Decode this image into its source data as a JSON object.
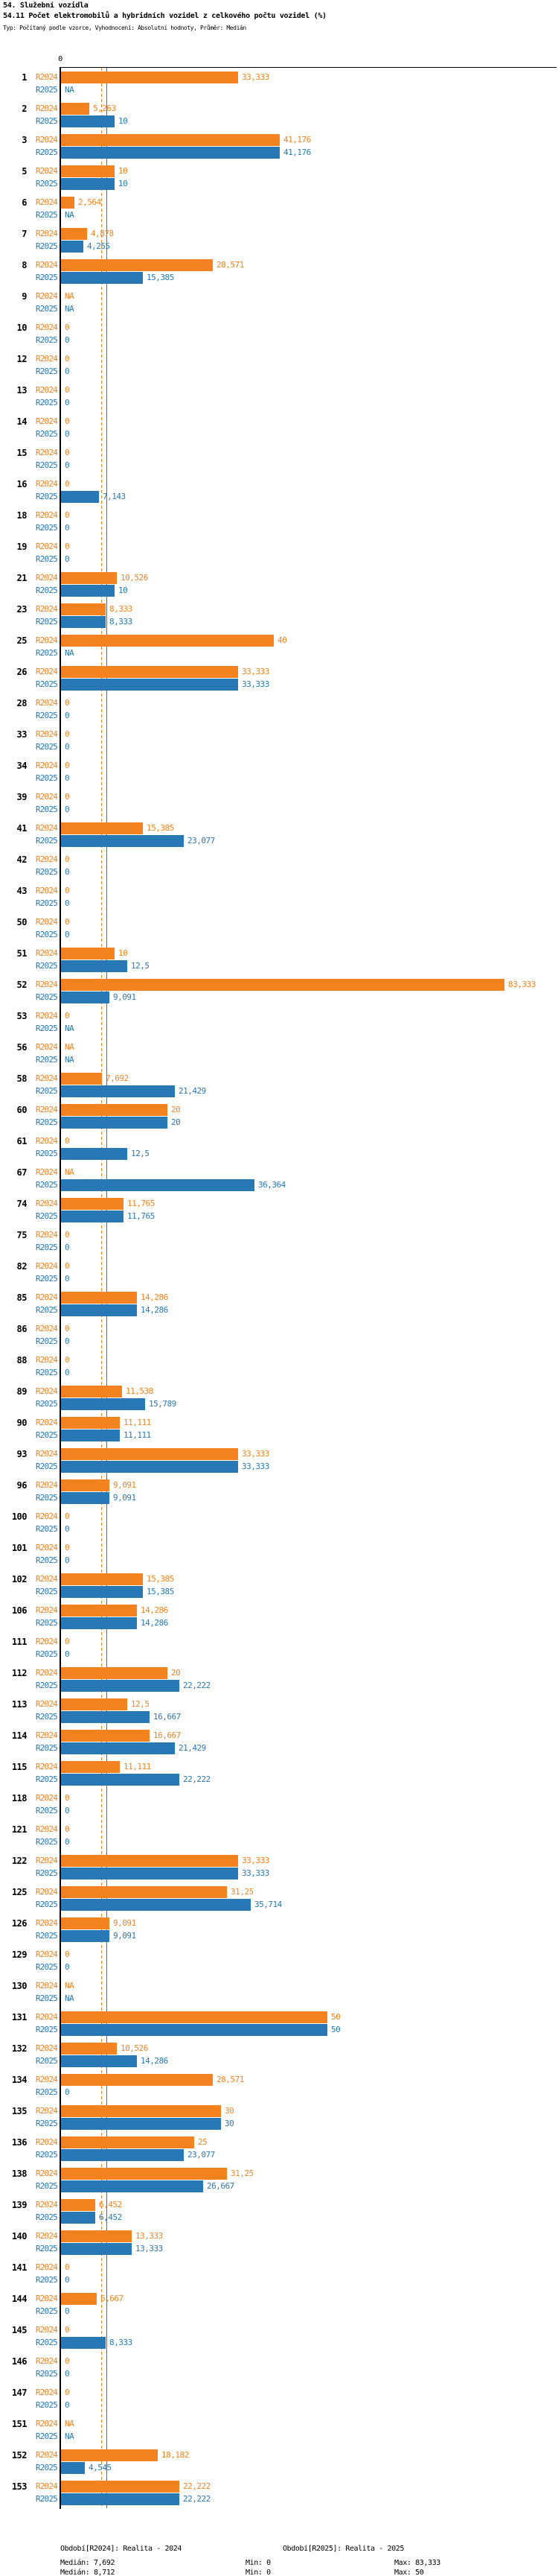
{
  "header": {
    "section_title": "54. Služební vozidla",
    "indicator_title": "54.11 Počet elektromobilů a hybridních vozidel z celkového počtu vozidel (%)",
    "meta": "Typ: Počítaný podle vzorce, Vyhodnocení: Absolutní hodnoty, Průměr: Medián"
  },
  "axis": {
    "zero_label": "0"
  },
  "colors": {
    "r2024_orange": "#F58220",
    "r2025_blue": "#2878B5",
    "axis_black": "#000000"
  },
  "na_label": "NA",
  "chart_data": {
    "type": "bar",
    "orientation": "horizontal",
    "title": "54.11 Počet elektromobilů a hybridních vozidel z celkového počtu vozidel (%)",
    "xlabel": "",
    "ylabel": "",
    "xlim": [
      0,
      93
    ],
    "grid": false,
    "legend_position": "bottom",
    "categories": [
      "1",
      "2",
      "3",
      "5",
      "6",
      "7",
      "8",
      "9",
      "10",
      "12",
      "13",
      "14",
      "15",
      "16",
      "18",
      "19",
      "21",
      "23",
      "25",
      "26",
      "28",
      "33",
      "34",
      "39",
      "41",
      "42",
      "43",
      "50",
      "51",
      "52",
      "53",
      "56",
      "58",
      "60",
      "61",
      "67",
      "74",
      "75",
      "82",
      "85",
      "86",
      "88",
      "89",
      "90",
      "93",
      "96",
      "100",
      "101",
      "102",
      "106",
      "111",
      "112",
      "113",
      "114",
      "115",
      "118",
      "121",
      "122",
      "125",
      "126",
      "129",
      "130",
      "131",
      "132",
      "134",
      "135",
      "136",
      "138",
      "139",
      "140",
      "141",
      "144",
      "145",
      "146",
      "147",
      "151",
      "152",
      "153"
    ],
    "series": [
      {
        "name": "R2024",
        "color": "#F58220",
        "median": 7.692,
        "min": 0,
        "max": 83.333,
        "values": [
          33.333,
          5.263,
          41.176,
          10,
          2.564,
          4.878,
          28.571,
          null,
          0,
          0,
          0,
          0,
          0,
          0,
          0,
          0,
          10.526,
          8.333,
          40,
          33.333,
          0,
          0,
          0,
          0,
          15.385,
          0,
          0,
          0,
          10,
          83.333,
          0,
          null,
          7.692,
          20,
          0,
          null,
          11.765,
          0,
          0,
          14.286,
          0,
          0,
          11.538,
          11.111,
          33.333,
          9.091,
          0,
          0,
          15.385,
          14.286,
          0,
          20,
          12.5,
          16.667,
          11.111,
          0,
          0,
          33.333,
          31.25,
          9.091,
          0,
          null,
          50,
          10.526,
          28.571,
          30,
          25,
          31.25,
          6.452,
          13.333,
          0,
          6.667,
          0,
          0,
          0,
          null,
          18.182,
          22.222
        ]
      },
      {
        "name": "R2025",
        "color": "#2878B5",
        "median": 8.712,
        "min": 0,
        "max": 50,
        "values": [
          null,
          10,
          41.176,
          10,
          null,
          4.255,
          15.385,
          null,
          0,
          0,
          0,
          0,
          0,
          7.143,
          0,
          0,
          10,
          8.333,
          null,
          33.333,
          0,
          0,
          0,
          0,
          23.077,
          0,
          0,
          0,
          12.5,
          9.091,
          null,
          null,
          21.429,
          20,
          12.5,
          36.364,
          11.765,
          0,
          0,
          14.286,
          0,
          0,
          15.789,
          11.111,
          33.333,
          9.091,
          0,
          0,
          15.385,
          14.286,
          0,
          22.222,
          16.667,
          21.429,
          22.222,
          0,
          0,
          33.333,
          35.714,
          9.091,
          0,
          null,
          50,
          14.286,
          0,
          30,
          23.077,
          26.667,
          6.452,
          13.333,
          0,
          0,
          8.333,
          0,
          0,
          null,
          4.545,
          22.222
        ]
      }
    ]
  },
  "footer": {
    "legend_2024": "Období[R2024]: Realita - 2024",
    "legend_2025": "Období[R2025]: Realita - 2025",
    "stats_2024": {
      "median": "Medián: 7,692",
      "min": "Min: 0",
      "max": "Max: 83,333"
    },
    "stats_2025": {
      "median": "Medián: 8,712",
      "min": "Min: 0",
      "max": "Max: 50"
    }
  }
}
